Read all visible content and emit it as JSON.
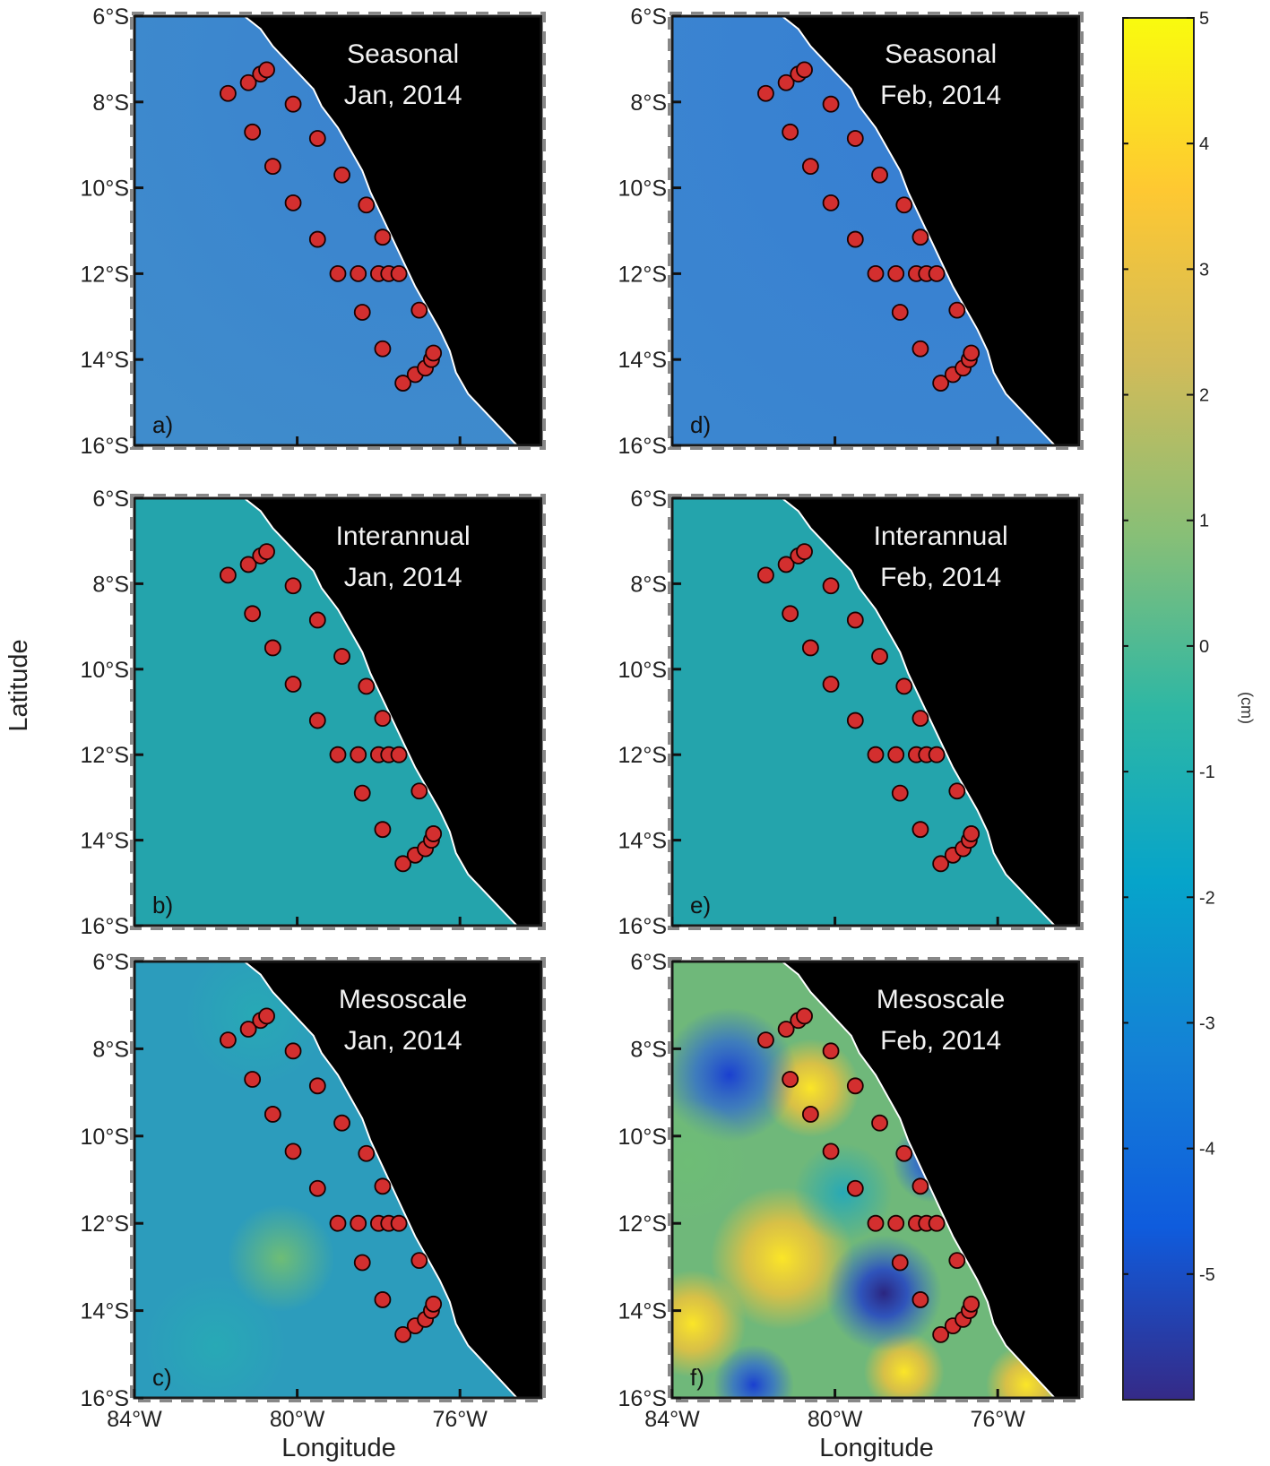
{
  "chart_data": {
    "type": "heatmap",
    "xlabel": "Longitude",
    "ylabel": "Latitude",
    "x_ticks": [
      "84°W",
      "80°W",
      "76°W"
    ],
    "x_tick_values": [
      -84,
      -80,
      -76
    ],
    "y_ticks": [
      "6°S",
      "8°S",
      "10°S",
      "12°S",
      "14°S",
      "16°S"
    ],
    "y_tick_values": [
      -6,
      -8,
      -10,
      -12,
      -14,
      -16
    ],
    "xlim": [
      -84,
      -74
    ],
    "ylim": [
      -16,
      -6
    ],
    "land_color": "#000000",
    "station_color": "#d32f2f",
    "stations": [
      [
        -81.7,
        -7.8
      ],
      [
        -81.2,
        -7.55
      ],
      [
        -80.9,
        -7.35
      ],
      [
        -80.75,
        -7.25
      ],
      [
        -81.1,
        -8.7
      ],
      [
        -80.1,
        -8.05
      ],
      [
        -79.5,
        -8.85
      ],
      [
        -78.9,
        -9.7
      ],
      [
        -80.6,
        -9.5
      ],
      [
        -80.1,
        -10.35
      ],
      [
        -78.3,
        -10.4
      ],
      [
        -79.5,
        -11.2
      ],
      [
        -77.9,
        -11.15
      ],
      [
        -79.0,
        -12.0
      ],
      [
        -78.5,
        -12.0
      ],
      [
        -78.0,
        -12.0
      ],
      [
        -77.75,
        -12.0
      ],
      [
        -77.5,
        -12.0
      ],
      [
        -78.4,
        -12.9
      ],
      [
        -77.0,
        -12.85
      ],
      [
        -77.9,
        -13.75
      ],
      [
        -77.4,
        -14.55
      ],
      [
        -77.1,
        -14.35
      ],
      [
        -76.85,
        -14.2
      ],
      [
        -76.7,
        -14.0
      ],
      [
        -76.65,
        -13.85
      ]
    ],
    "panels": [
      {
        "letter": "a)",
        "component": "Seasonal",
        "date": "Jan, 2014",
        "fill_color": "#3f8ccc"
      },
      {
        "letter": "b)",
        "component": "Interannual",
        "date": "Jan, 2014",
        "fill_color": "#24a4ac"
      },
      {
        "letter": "c)",
        "component": "Mesoscale",
        "date": "Jan, 2014",
        "fill_color": "#2c9cbc"
      },
      {
        "letter": "d)",
        "component": "Seasonal",
        "date": "Feb, 2014",
        "fill_color": "#3b86d0"
      },
      {
        "letter": "e)",
        "component": "Interannual",
        "date": "Feb, 2014",
        "fill_color": "#24a4ac"
      },
      {
        "letter": "f)",
        "component": "Mesoscale",
        "date": "Feb, 2014",
        "fill_color": "#6fb87a"
      }
    ],
    "colorbar": {
      "label": "(cm)",
      "range": [
        -6,
        5
      ],
      "ticks": [
        5,
        4,
        3,
        2,
        1,
        0,
        -1,
        -2,
        -3,
        -4,
        -5
      ],
      "tick_labels": [
        "5",
        "4",
        "3",
        "2",
        "1",
        "0",
        "-1",
        "-2",
        "-3",
        "-4",
        "-5"
      ],
      "colormap": "parula",
      "colormap_stops": [
        "#352a87",
        "#0f5cdd",
        "#1481d6",
        "#06a4ca",
        "#2eb7a4",
        "#87bf77",
        "#d1bb59",
        "#fec832",
        "#f9fb0e"
      ]
    }
  }
}
